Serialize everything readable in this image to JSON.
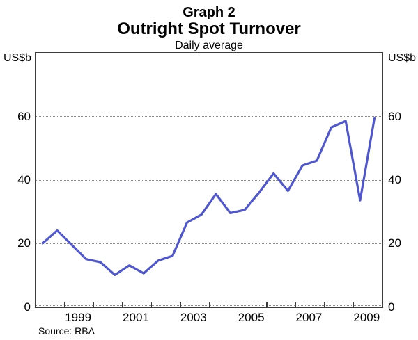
{
  "header": {
    "graph_number": "Graph 2",
    "title": "Outright Spot Turnover",
    "subtitle": "Daily average"
  },
  "axes": {
    "unit_left": "US$b",
    "unit_right": "US$b",
    "y_tick_values": [
      0,
      20,
      40,
      60
    ],
    "x_year_label_values": [
      1999,
      2001,
      2003,
      2005,
      2007,
      2009
    ],
    "x_tick_years": [
      1999,
      2000,
      2001,
      2002,
      2003,
      2004,
      2005,
      2006,
      2007,
      2008,
      2009
    ]
  },
  "source": "Source: RBA",
  "colors": {
    "line": "#4e56d2",
    "grid": "#8a8a8a",
    "frame": "#3c3c3c"
  },
  "chart_data": {
    "type": "line",
    "title": "Outright Spot Turnover",
    "subtitle": "Daily average",
    "ylabel": "US$b",
    "frequency": "semiannual",
    "legend": "none",
    "grid": "horizontal dotted at 0/20/40/60",
    "xlim": [
      1998,
      2010
    ],
    "ylim": [
      0,
      80
    ],
    "x": [
      1998.25,
      1998.75,
      1999.25,
      1999.75,
      2000.25,
      2000.75,
      2001.25,
      2001.75,
      2002.25,
      2002.75,
      2003.25,
      2003.75,
      2004.25,
      2004.75,
      2005.25,
      2005.75,
      2006.25,
      2006.75,
      2007.25,
      2007.75,
      2008.25,
      2008.75,
      2009.25,
      2009.75
    ],
    "values": [
      20,
      24,
      19.5,
      15,
      14,
      10,
      13,
      10.5,
      14.5,
      16,
      26.5,
      29,
      35.5,
      29.5,
      30.5,
      36,
      42,
      36.5,
      44.5,
      46,
      56.5,
      58.5,
      33.5,
      59.5
    ]
  }
}
